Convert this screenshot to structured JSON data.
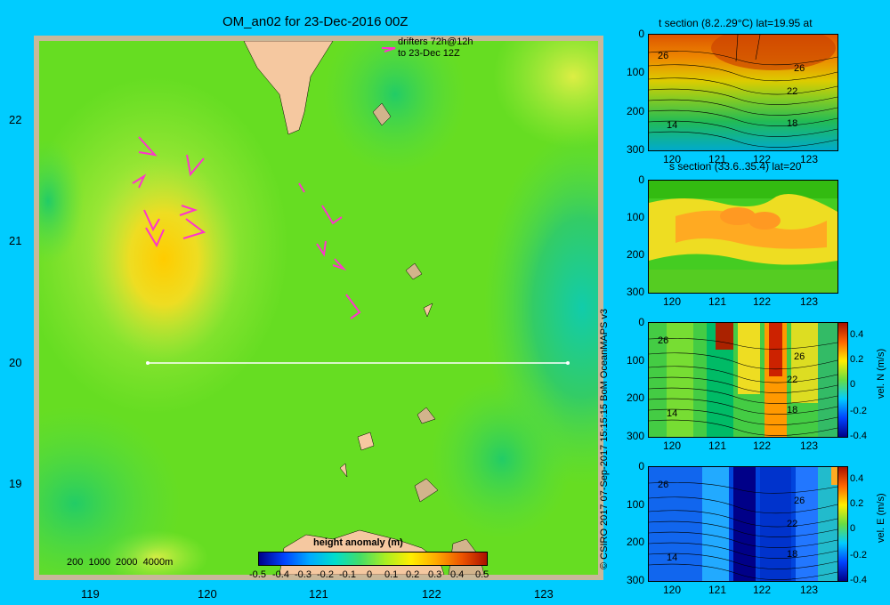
{
  "title": "OM_an02 for 23-Dec-2016 00Z",
  "drifters_label": [
    "drifters 72h@12h",
    "to 23-Dec 12Z"
  ],
  "map": {
    "lon_ticks": [
      "119",
      "120",
      "121",
      "122",
      "123"
    ],
    "lat_ticks": [
      "22",
      "21",
      "20",
      "19"
    ],
    "depth_legend": "200  1000  2000  4000m",
    "colorbar_title": "height anomaly (m)",
    "colorbar_ticks": [
      "-0.5",
      "-0.4",
      "-0.3",
      "-0.2",
      "-0.1",
      "0",
      "0.1",
      "0.2",
      "0.3",
      "0.4",
      "0.5"
    ],
    "colors": {
      "land": "#f5c8a0",
      "ocean_low": "#66dd22",
      "ocean_high": "#ffcc00",
      "drifter": "#ff33cc",
      "section_line": "#ffffff"
    }
  },
  "credit": "© CSIRO 2017   07-Sep-2017 15:15:15 BoM OceanMAPS v3",
  "sections": [
    {
      "title": "t section (8.2..29°C) lat=19.95 at",
      "contours": [
        "26",
        "26",
        "22",
        "18",
        "14"
      ],
      "cbar_label": "",
      "cbar_ticks": []
    },
    {
      "title": "s section (33.6..35.4) lat=20",
      "contours": [],
      "cbar_label": "",
      "cbar_ticks": []
    },
    {
      "title": "",
      "contours": [
        "26",
        "26",
        "22",
        "18",
        "14"
      ],
      "cbar_label": "vel. N (m/s)",
      "cbar_ticks": [
        "0.4",
        "0.2",
        "0",
        "-0.2",
        "-0.4"
      ]
    },
    {
      "title": "",
      "contours": [
        "26",
        "26",
        "22",
        "18",
        "14"
      ],
      "cbar_label": "vel. E (m/s)",
      "cbar_ticks": [
        "0.4",
        "0.2",
        "0",
        "-0.2",
        "-0.4"
      ]
    }
  ],
  "section_axes": {
    "depth_ticks": [
      "0",
      "100",
      "200",
      "300"
    ],
    "lon_ticks": [
      "120",
      "121",
      "122",
      "123"
    ]
  }
}
